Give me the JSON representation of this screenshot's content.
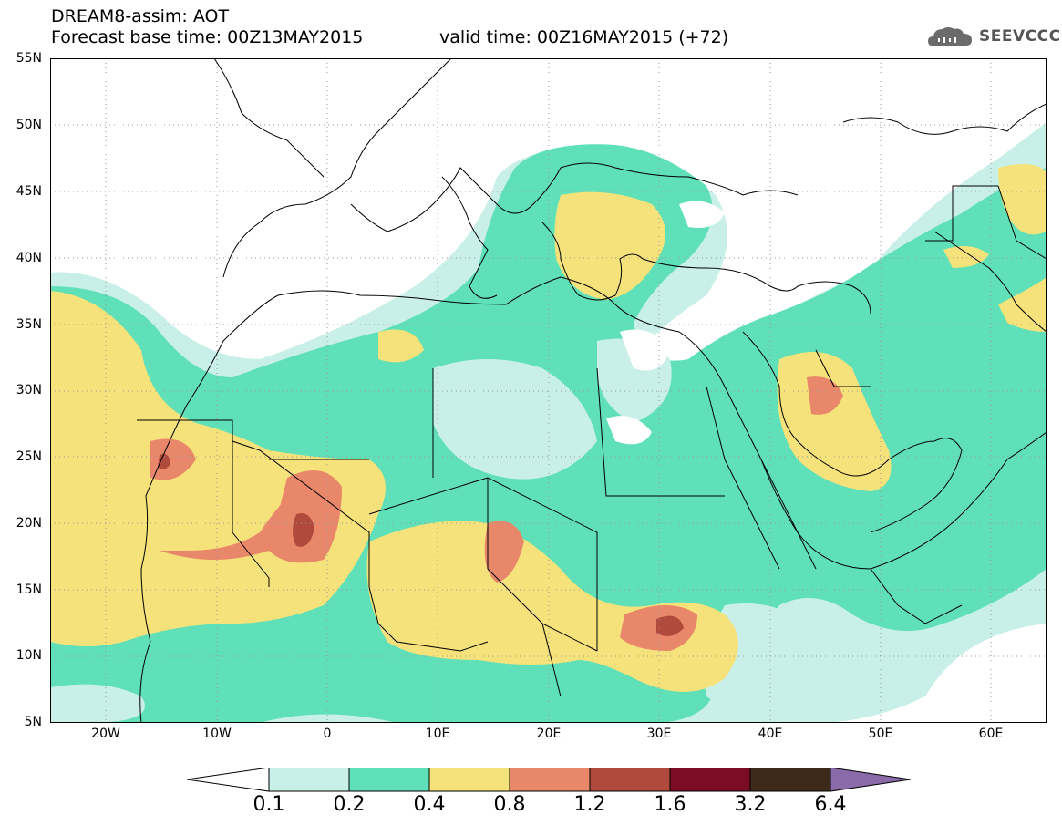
{
  "header": {
    "line1": "DREAM8-assim: AOT",
    "line2": "Forecast base time: 00Z13MAY2015",
    "valid": "valid time: 00Z16MAY2015 (+72)"
  },
  "logo": {
    "text": "SEEVCCC",
    "icon": "cloud-icon"
  },
  "map": {
    "lat_labels": [
      "55N",
      "50N",
      "45N",
      "40N",
      "35N",
      "30N",
      "25N",
      "20N",
      "15N",
      "10N",
      "5N"
    ],
    "lon_labels": [
      "20W",
      "10W",
      "0",
      "10E",
      "20E",
      "30E",
      "40E",
      "50E",
      "60E"
    ],
    "gridlines": "dotted"
  },
  "colorbar": {
    "levels": [
      "0.1",
      "0.2",
      "0.4",
      "0.8",
      "1.2",
      "1.6",
      "3.2",
      "6.4"
    ],
    "colors": [
      "#ffffff",
      "#c8f0e8",
      "#5fe0b8",
      "#f5e27a",
      "#e8876a",
      "#b04a3c",
      "#7a0c24",
      "#3e2a1a",
      "#8a6aa8"
    ]
  }
}
